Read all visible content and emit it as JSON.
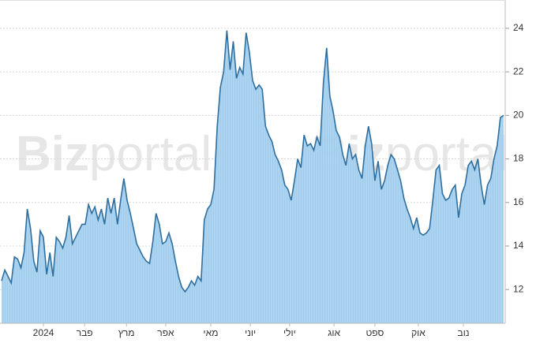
{
  "chart_data": {
    "type": "area",
    "watermark": [
      "Biz",
      "portal"
    ],
    "values": [
      12.4,
      12.9,
      12.6,
      12.3,
      13.5,
      13.4,
      13,
      13.7,
      15.7,
      14.8,
      13.3,
      12.8,
      14.7,
      14.4,
      12.7,
      13.7,
      12.6,
      14.4,
      14.2,
      13.9,
      14.4,
      15.4,
      14.1,
      14.4,
      14.7,
      15,
      15,
      15.9,
      15.5,
      15.8,
      15.2,
      15.7,
      15,
      16.2,
      15.5,
      16.2,
      15,
      16.1,
      17.1,
      16.1,
      15.5,
      14.8,
      14.1,
      13.8,
      13.5,
      13.3,
      13.2,
      14.2,
      15.5,
      15,
      14.1,
      14.2,
      14.6,
      14.1,
      13.3,
      12.6,
      12.1,
      11.9,
      12.1,
      12.4,
      12.2,
      12.6,
      12.4,
      15.2,
      15.7,
      15.9,
      16.6,
      19.5,
      21.3,
      22,
      23.9,
      22.1,
      23.4,
      21.7,
      22.2,
      21.9,
      23.8,
      22.9,
      21.6,
      21.2,
      21.4,
      21.2,
      19.5,
      19.1,
      18.8,
      18.2,
      17.9,
      17.5,
      16.8,
      16.6,
      16.1,
      17,
      18,
      17.6,
      19.1,
      18.6,
      18.7,
      18.4,
      19,
      18.6,
      21.5,
      23.1,
      20.9,
      20.2,
      19.3,
      19,
      18.2,
      17.7,
      18.7,
      18,
      18.2,
      17.5,
      17.1,
      18.6,
      19.5,
      18.7,
      17,
      17.9,
      16.6,
      17,
      17.7,
      18.2,
      18,
      17.5,
      17,
      16.2,
      15.7,
      15.3,
      14.8,
      15.3,
      14.6,
      14.5,
      14.6,
      14.8,
      16.1,
      17.5,
      17.7,
      16.4,
      16.1,
      16.2,
      16.6,
      16.8,
      15.3,
      16.4,
      16.8,
      17.7,
      17.9,
      17.5,
      18,
      16.8,
      15.9,
      16.8,
      17.1,
      18,
      18.6,
      19.9,
      20
    ],
    "line_color": "#2f6f9f",
    "fill_color": "#a8d2ef",
    "xlim": [
      0,
      156
    ],
    "xticks": [
      {
        "value": 13,
        "label": "2024"
      },
      {
        "value": 25.8,
        "label": "פבר"
      },
      {
        "value": 38.8,
        "label": "מרץ"
      },
      {
        "value": 51,
        "label": "אפר"
      },
      {
        "value": 65,
        "label": "מאי"
      },
      {
        "value": 77.3,
        "label": "יוני"
      },
      {
        "value": 89.5,
        "label": "יולי"
      },
      {
        "value": 103.3,
        "label": "אוג"
      },
      {
        "value": 116,
        "label": "ספט"
      },
      {
        "value": 129.5,
        "label": "אוק"
      },
      {
        "value": 143.5,
        "label": "נוב"
      }
    ],
    "ylim": [
      10.45,
      25.3
    ],
    "yticks": [
      12,
      14,
      16,
      18,
      20,
      22,
      24
    ],
    "grid": true
  }
}
